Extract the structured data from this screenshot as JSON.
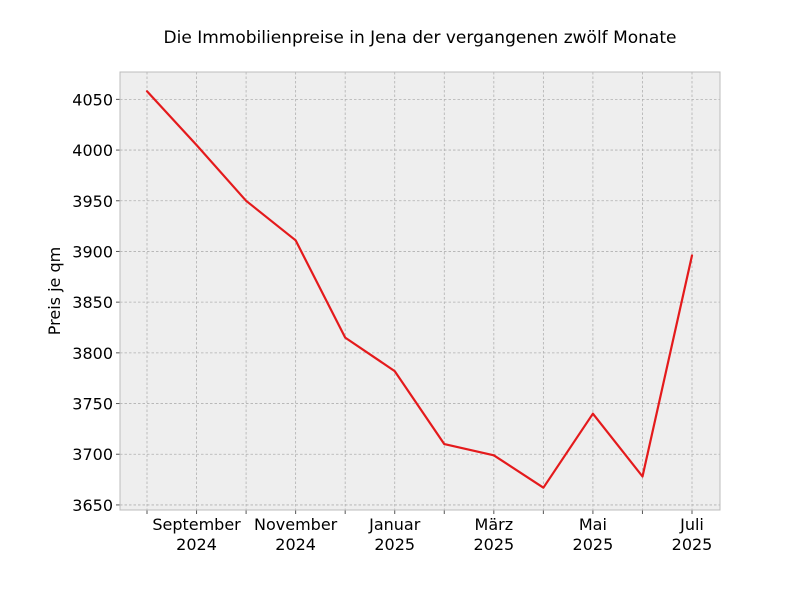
{
  "chart_data": {
    "type": "line",
    "title": "Die Immobilienpreise in Jena der vergangenen zwölf Monate",
    "xlabel": "",
    "ylabel": "Preis je qm",
    "x": [
      "2024-08",
      "2024-09",
      "2024-10",
      "2024-11",
      "2024-12",
      "2025-01",
      "2025-02",
      "2025-03",
      "2025-04",
      "2025-05",
      "2025-06",
      "2025-07"
    ],
    "series": [
      {
        "values": [
          4058,
          4005,
          3950,
          3911,
          3815,
          3782,
          3710,
          3699,
          3667,
          3740,
          3678,
          3896
        ]
      }
    ],
    "x_ticks": [
      {
        "x": "2024-09",
        "line1": "September",
        "line2": "2024"
      },
      {
        "x": "2024-11",
        "line1": "November",
        "line2": "2024"
      },
      {
        "x": "2025-01",
        "line1": "Januar",
        "line2": "2025"
      },
      {
        "x": "2025-03",
        "line1": "März",
        "line2": "2025"
      },
      {
        "x": "2025-05",
        "line1": "Mai",
        "line2": "2025"
      },
      {
        "x": "2025-07",
        "line1": "Juli",
        "line2": "2025"
      }
    ],
    "y_ticks": [
      3650,
      3700,
      3750,
      3800,
      3850,
      3900,
      3950,
      4000,
      4050
    ],
    "ylim": [
      3645,
      4077
    ],
    "grid": true,
    "colors": {
      "line": "#e41a1c",
      "plot_background": "#eeeeee",
      "grid": "#b0b0b0",
      "frame": "#bcbcbc"
    }
  }
}
